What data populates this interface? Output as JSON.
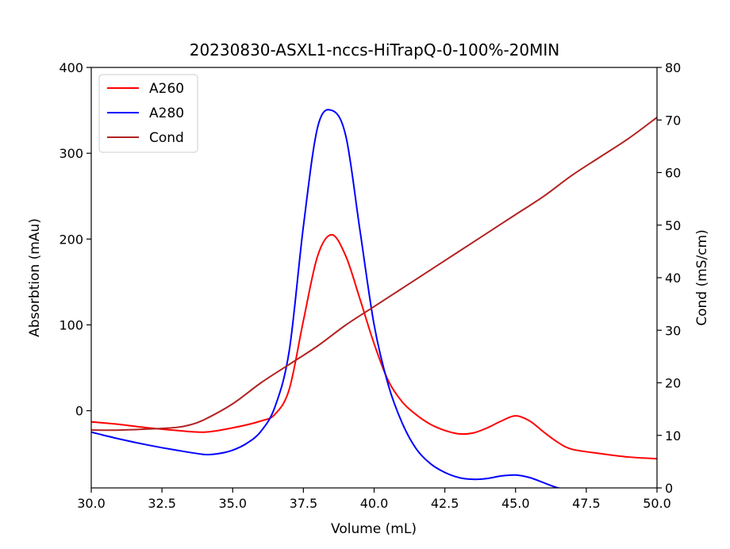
{
  "chart_data": {
    "type": "line",
    "title": "20230830-ASXL1-nccs-HiTrapQ-0-100%-20MIN",
    "xlabel": "Volume (mL)",
    "ylabel": "Absorbtion (mAu)",
    "y2label": "Cond (mS/cm)",
    "xlim": [
      30,
      50
    ],
    "ylim": [
      -90,
      400
    ],
    "y2lim": [
      0,
      80
    ],
    "xticks": [
      "30.0",
      "32.5",
      "35.0",
      "37.5",
      "40.0",
      "42.5",
      "45.0",
      "47.5",
      "50.0"
    ],
    "yticks": [
      "0",
      "100",
      "200",
      "300",
      "400"
    ],
    "y2ticks": [
      "0",
      "10",
      "20",
      "30",
      "40",
      "50",
      "60",
      "70",
      "80"
    ],
    "legend_position": "top-left",
    "series": [
      {
        "name": "A260",
        "axis": "left",
        "color": "#ff0000",
        "x": [
          30,
          31,
          32,
          33,
          34,
          35,
          36,
          36.5,
          37,
          37.5,
          38,
          38.5,
          39,
          39.5,
          40,
          40.5,
          41,
          41.5,
          42,
          42.5,
          43,
          43.5,
          44,
          44.5,
          45,
          45.5,
          46,
          46.5,
          47,
          48,
          49,
          50
        ],
        "y": [
          -13,
          -16,
          -20,
          -23,
          -25,
          -20,
          -12,
          -4,
          25,
          105,
          180,
          205,
          180,
          130,
          78,
          35,
          10,
          -5,
          -16,
          -23,
          -27,
          -26,
          -20,
          -12,
          -6,
          -12,
          -25,
          -37,
          -45,
          -50,
          -54,
          -56
        ]
      },
      {
        "name": "A280",
        "axis": "left",
        "color": "#0000ff",
        "x": [
          30,
          31,
          32,
          33,
          34,
          34.5,
          35,
          35.5,
          36,
          36.5,
          37,
          37.5,
          38,
          38.5,
          39,
          39.5,
          40,
          40.5,
          41,
          41.5,
          42,
          42.5,
          43,
          43.5,
          44,
          44.5,
          45,
          45.5,
          46,
          46.5,
          47
        ],
        "y": [
          -25,
          -33,
          -40,
          -46,
          -51,
          -50,
          -46,
          -38,
          -24,
          5,
          70,
          215,
          330,
          350,
          320,
          210,
          100,
          30,
          -15,
          -45,
          -62,
          -72,
          -78,
          -80,
          -79,
          -76,
          -75,
          -78,
          -84,
          -90,
          -92
        ]
      },
      {
        "name": "Cond",
        "axis": "right",
        "color": "#b22222",
        "x": [
          30,
          31,
          32,
          33,
          33.5,
          34,
          35,
          36,
          37,
          38,
          39,
          40,
          41,
          42,
          43,
          44,
          45,
          46,
          47,
          48,
          49,
          50
        ],
        "y": [
          11,
          11,
          11.2,
          11.5,
          12,
          13,
          16,
          20,
          23.5,
          27,
          31,
          34.5,
          38,
          41.5,
          45,
          48.5,
          52,
          55.5,
          59.5,
          63,
          66.5,
          70.5
        ]
      }
    ]
  }
}
